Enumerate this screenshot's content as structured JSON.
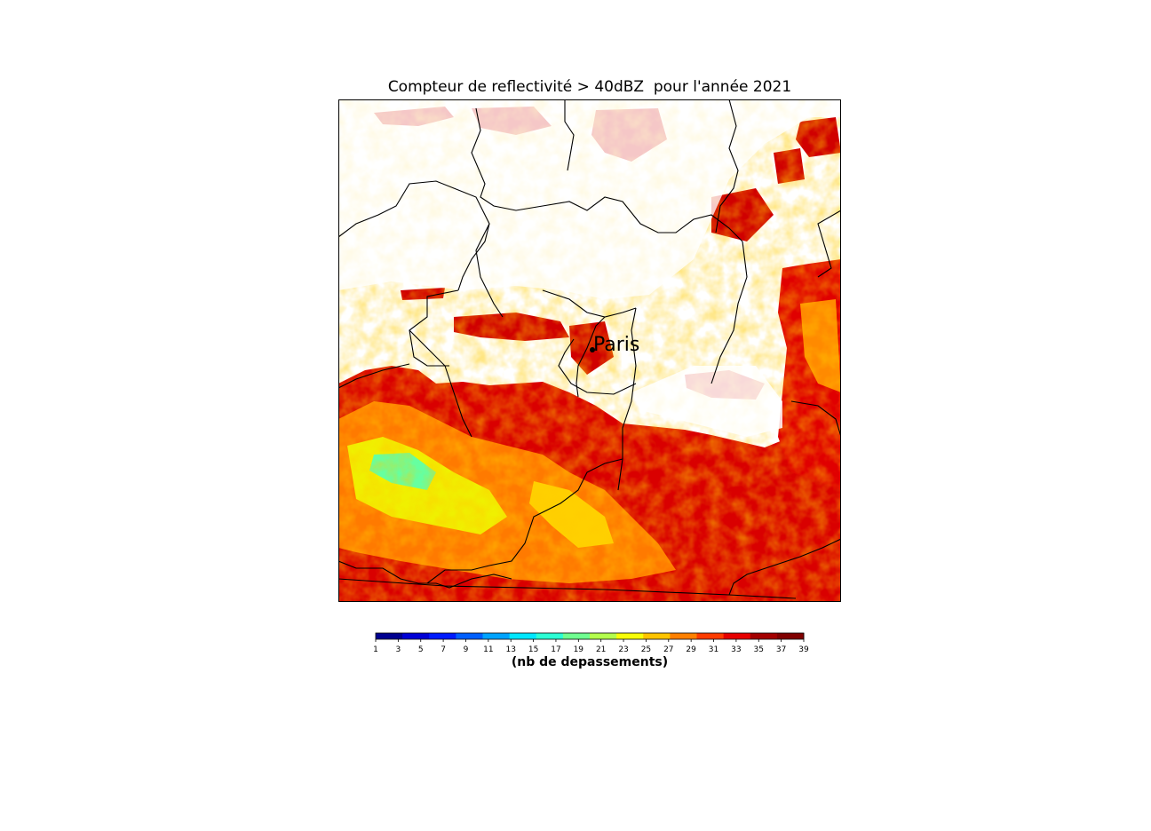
{
  "title": "Compteur de reflectivité > 40dBZ  pour l'année 2021",
  "map": {
    "city_label": "Paris"
  },
  "colorbar": {
    "label": "(nb de depassements)",
    "ticks": [
      "1",
      "3",
      "5",
      "7",
      "9",
      "11",
      "13",
      "15",
      "17",
      "19",
      "21",
      "23",
      "25",
      "27",
      "29",
      "31",
      "33",
      "35",
      "37",
      "39"
    ],
    "min": 1,
    "max": 39,
    "colors": [
      "#00008f",
      "#0000d5",
      "#001bff",
      "#005fff",
      "#00a3ff",
      "#00e7ff",
      "#2bffd4",
      "#6fff90",
      "#b3ff4c",
      "#f7ff08",
      "#ffc400",
      "#ff8000",
      "#ff3c00",
      "#e60000",
      "#a30000",
      "#800000"
    ]
  }
}
